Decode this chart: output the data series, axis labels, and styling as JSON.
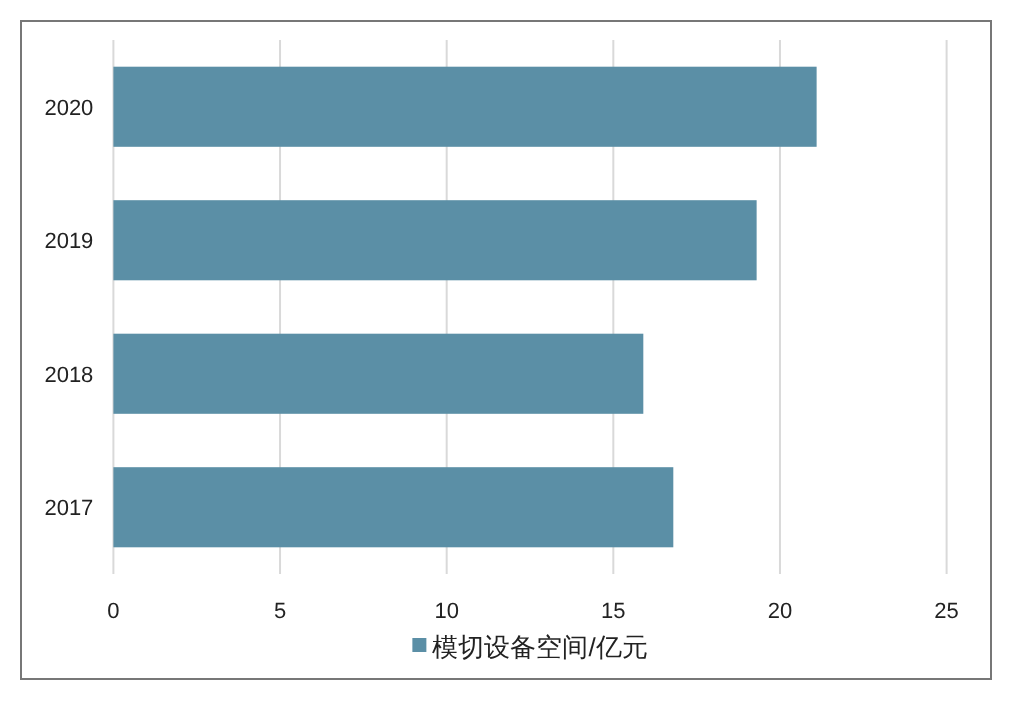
{
  "chart_data": {
    "type": "bar",
    "orientation": "horizontal",
    "categories": [
      "2020",
      "2019",
      "2018",
      "2017"
    ],
    "series": [
      {
        "name": "模切设备空间/亿元",
        "color": "#5b8fa6",
        "values": [
          21.1,
          19.3,
          15.9,
          16.8
        ]
      }
    ],
    "xlim": [
      0,
      25
    ],
    "xticks": [
      0,
      5,
      10,
      15,
      20,
      25
    ],
    "grid": "x",
    "legend": "bottom"
  }
}
